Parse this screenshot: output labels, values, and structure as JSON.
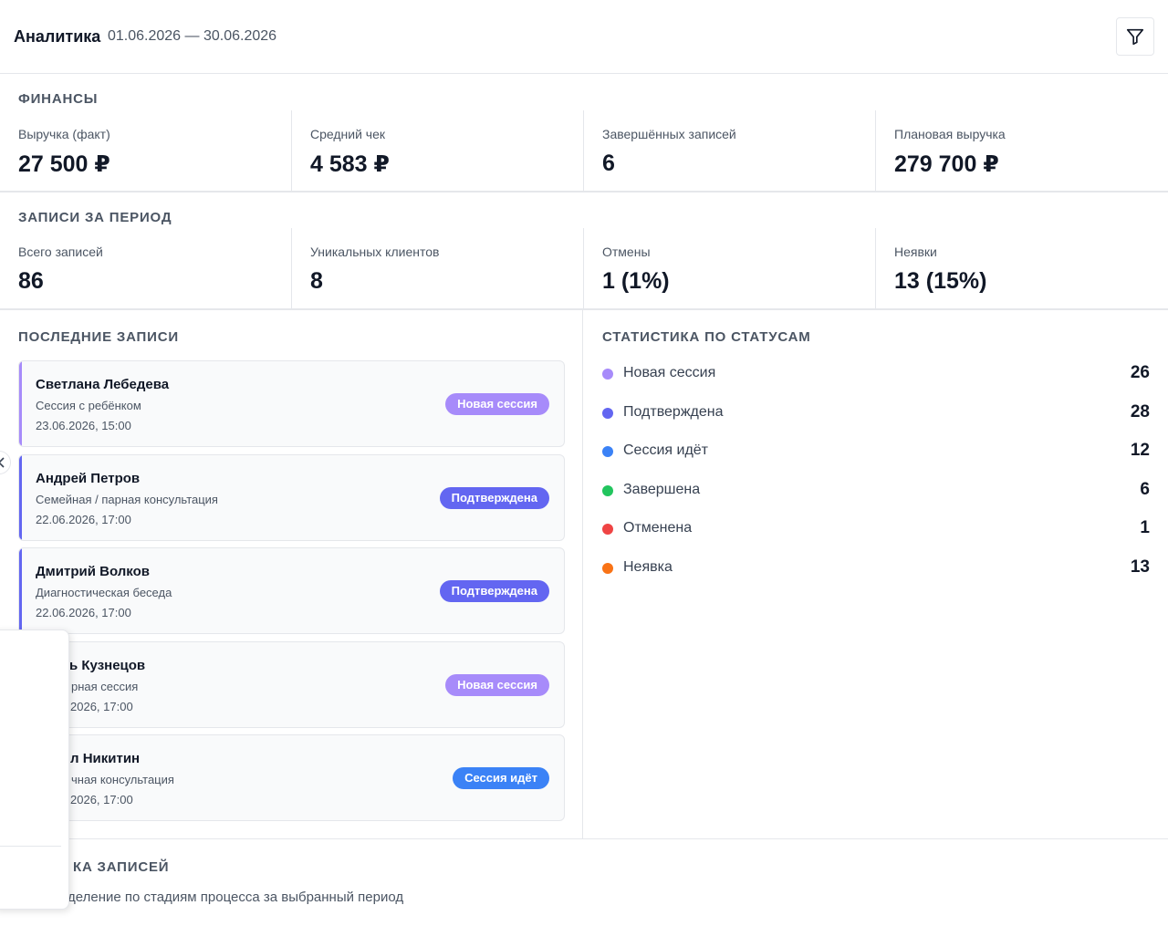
{
  "header": {
    "title": "Аналитика",
    "period": "01.06.2026 — 30.06.2026",
    "filter_icon": "filter-icon"
  },
  "finance": {
    "title": "ФИНАНСЫ",
    "kpis": [
      {
        "label": "Выручка (факт)",
        "value": "27 500 ₽"
      },
      {
        "label": "Средний чек",
        "value": "4 583 ₽"
      },
      {
        "label": "Завершённых записей",
        "value": "6"
      },
      {
        "label": "Плановая выручка",
        "value": "279 700 ₽"
      }
    ]
  },
  "period_records": {
    "title": "ЗАПИСИ ЗА ПЕРИОД",
    "kpis": [
      {
        "label": "Всего записей",
        "value": "86"
      },
      {
        "label": "Уникальных клиентов",
        "value": "8"
      },
      {
        "label": "Отмены",
        "value": "1 (1%)"
      },
      {
        "label": "Неявки",
        "value": "13 (15%)"
      }
    ]
  },
  "recent": {
    "title": "ПОСЛЕДНИЕ ЗАПИСИ",
    "items": [
      {
        "name": "Светлана Лебедева",
        "service": "Сессия с ребёнком",
        "date": "23.06.2026, 15:00",
        "status": "Новая сессия",
        "color": "#a78bfa"
      },
      {
        "name": "Андрей Петров",
        "service": "Семейная / парная консультация",
        "date": "22.06.2026, 17:00",
        "status": "Подтверждена",
        "color": "#6366f1"
      },
      {
        "name": "Дмитрий Волков",
        "service": "Диагностическая беседа",
        "date": "22.06.2026, 17:00",
        "status": "Подтверждена",
        "color": "#6366f1"
      },
      {
        "name": "ь Кузнецов",
        "service": "рная сессия",
        "date": "2026, 17:00",
        "status": "Новая сессия",
        "color": "#a78bfa"
      },
      {
        "name": "л Никитин",
        "service": "чная консультация",
        "date": "2026, 17:00",
        "status": "Сессия идёт",
        "color": "#3b82f6"
      }
    ]
  },
  "status_stats": {
    "title": "СТАТИСТИКА ПО СТАТУСАМ",
    "items": [
      {
        "label": "Новая сессия",
        "value": "26",
        "color": "#a78bfa"
      },
      {
        "label": "Подтверждена",
        "value": "28",
        "color": "#6366f1"
      },
      {
        "label": "Сессия идёт",
        "value": "12",
        "color": "#3b82f6"
      },
      {
        "label": "Завершена",
        "value": "6",
        "color": "#22c55e"
      },
      {
        "label": "Отменена",
        "value": "1",
        "color": "#ef4444"
      },
      {
        "label": "Неявка",
        "value": "13",
        "color": "#f97316"
      }
    ]
  },
  "funnel": {
    "title": "КА ЗАПИСЕЙ",
    "subtitle": "деление по стадиям процесса за выбранный период"
  }
}
